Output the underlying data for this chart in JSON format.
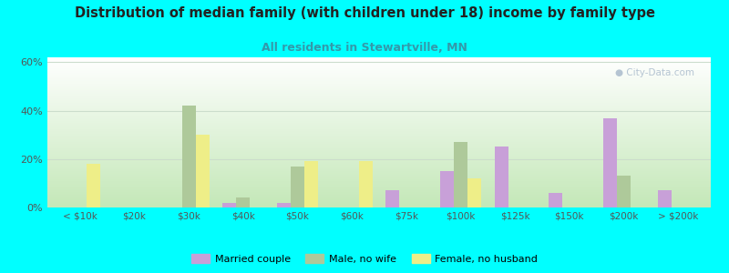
{
  "title": "Distribution of median family (with children under 18) income by family type",
  "subtitle": "All residents in Stewartville, MN",
  "background_color": "#00FFFF",
  "categories": [
    "< $10k",
    "$20k",
    "$30k",
    "$40k",
    "$50k",
    "$60k",
    "$75k",
    "$100k",
    "$125k",
    "$150k",
    "$200k",
    "> $200k"
  ],
  "married_couple": [
    0,
    0,
    0,
    2,
    2,
    0,
    7,
    15,
    25,
    6,
    37,
    7
  ],
  "male_no_wife": [
    0,
    0,
    42,
    4,
    17,
    0,
    0,
    27,
    0,
    0,
    13,
    0
  ],
  "female_no_husb": [
    18,
    0,
    30,
    0,
    19,
    19,
    0,
    12,
    0,
    0,
    0,
    0
  ],
  "married_color": "#c8a0d8",
  "male_color": "#aec99a",
  "female_color": "#eeee88",
  "ylim": [
    0,
    62
  ],
  "yticks": [
    0,
    20,
    40,
    60
  ],
  "ytick_labels": [
    "0%",
    "20%",
    "40%",
    "60%"
  ],
  "bar_width": 0.25,
  "legend_labels": [
    "Married couple",
    "Male, no wife",
    "Female, no husband"
  ],
  "watermark": "City-Data.com",
  "title_fontsize": 10.5,
  "subtitle_fontsize": 9,
  "subtitle_color": "#3399aa",
  "tick_color": "#555555",
  "tick_fontsize": 7.5
}
